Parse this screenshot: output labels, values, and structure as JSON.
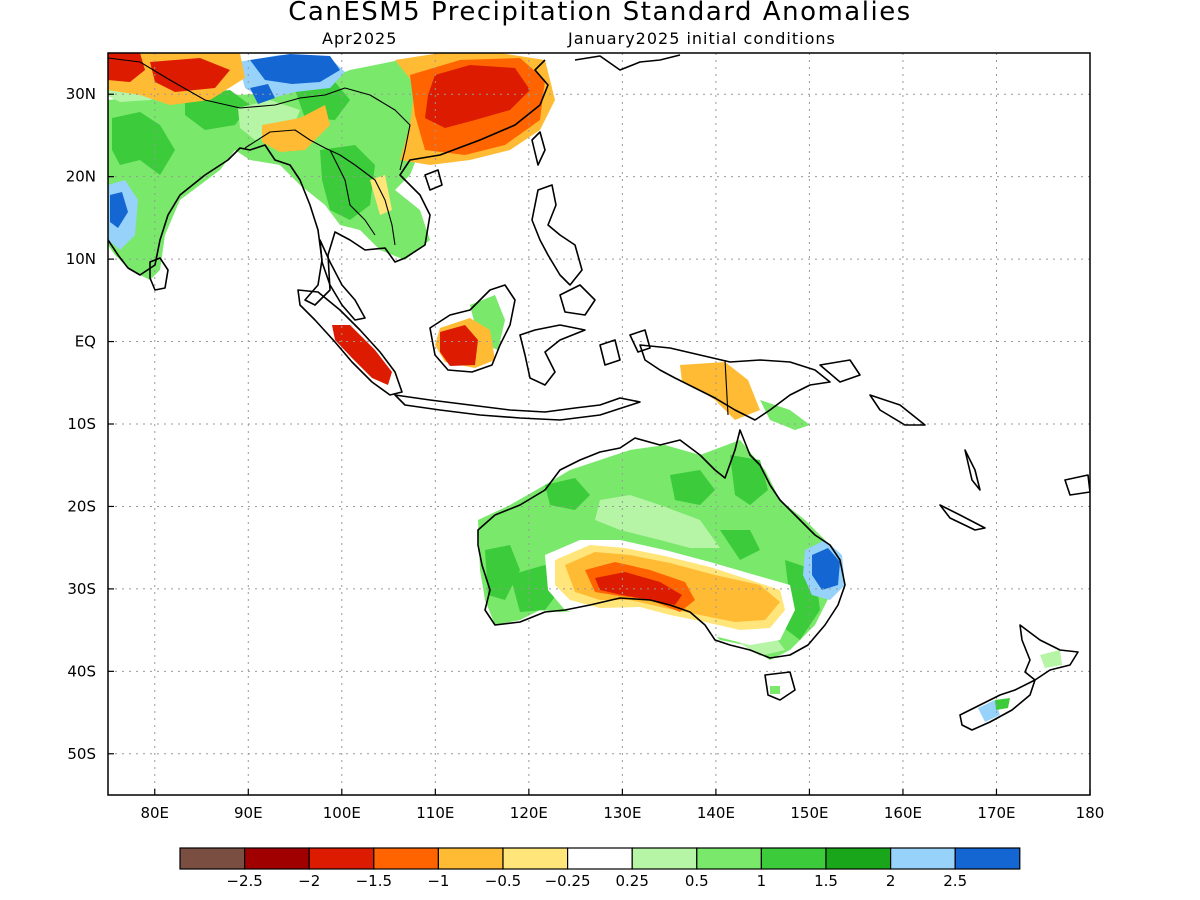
{
  "title": "CanESM5 Precipitation Standard Anomalies",
  "subtitle_left": "Apr2025",
  "subtitle_right": "January2025 initial conditions",
  "lon_ticks": [
    {
      "value": 80,
      "label": "80E"
    },
    {
      "value": 90,
      "label": "90E"
    },
    {
      "value": 100,
      "label": "100E"
    },
    {
      "value": 110,
      "label": "110E"
    },
    {
      "value": 120,
      "label": "120E"
    },
    {
      "value": 130,
      "label": "130E"
    },
    {
      "value": 140,
      "label": "140E"
    },
    {
      "value": 150,
      "label": "150E"
    },
    {
      "value": 160,
      "label": "160E"
    },
    {
      "value": 170,
      "label": "170E"
    },
    {
      "value": 180,
      "label": "180"
    }
  ],
  "lat_ticks": [
    {
      "value": 30,
      "label": "30N"
    },
    {
      "value": 20,
      "label": "20N"
    },
    {
      "value": 10,
      "label": "10N"
    },
    {
      "value": 0,
      "label": "EQ"
    },
    {
      "value": -10,
      "label": "10S"
    },
    {
      "value": -20,
      "label": "20S"
    },
    {
      "value": -30,
      "label": "30S"
    },
    {
      "value": -40,
      "label": "40S"
    },
    {
      "value": -50,
      "label": "50S"
    }
  ],
  "extent": {
    "lon_min": 75,
    "lon_max": 180,
    "lat_min": -55,
    "lat_max": 35
  },
  "gridlines": true,
  "colorbar": {
    "colors": [
      "#7a4e40",
      "#a00000",
      "#dc1b00",
      "#ff6400",
      "#ffbb33",
      "#ffe57a",
      "#ffffff",
      "#b5f5a5",
      "#7ae86b",
      "#3bcb3b",
      "#1aa61a",
      "#96d2fa",
      "#1466d2"
    ],
    "labels": [
      "-2.5",
      "-2",
      "-1.5",
      "-1",
      "-0.5",
      "-0.25",
      "0.25",
      "0.5",
      "1",
      "1.5",
      "2",
      "2.5"
    ]
  }
}
